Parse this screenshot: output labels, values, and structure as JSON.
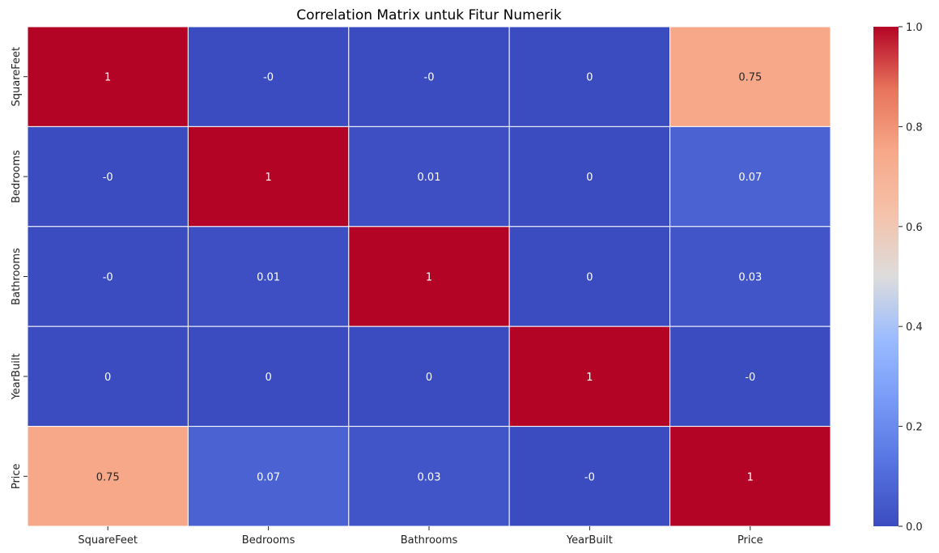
{
  "chart_data": {
    "type": "heatmap",
    "title": "Correlation Matrix untuk Fitur Numerik",
    "xlabel": "",
    "ylabel": "",
    "categories_x": [
      "SquareFeet",
      "Bedrooms",
      "Bathrooms",
      "YearBuilt",
      "Price"
    ],
    "categories_y": [
      "SquareFeet",
      "Bedrooms",
      "Bathrooms",
      "YearBuilt",
      "Price"
    ],
    "values": [
      [
        1,
        -0.0,
        -0.0,
        0.0,
        0.75
      ],
      [
        -0.0,
        1,
        0.01,
        0.0,
        0.07
      ],
      [
        -0.0,
        0.01,
        1,
        0.0,
        0.03
      ],
      [
        0.0,
        0.0,
        0.0,
        1,
        -0.0
      ],
      [
        0.75,
        0.07,
        0.03,
        -0.0,
        1
      ]
    ],
    "labels": [
      [
        "1",
        "-0",
        "-0",
        "0",
        "0.75"
      ],
      [
        "-0",
        "1",
        "0.01",
        "0",
        "0.07"
      ],
      [
        "-0",
        "0.01",
        "1",
        "0",
        "0.03"
      ],
      [
        "0",
        "0",
        "0",
        "1",
        "-0"
      ],
      [
        "0.75",
        "0.07",
        "0.03",
        "-0",
        "1"
      ]
    ],
    "colormap": "coolwarm",
    "colorbar": {
      "range": [
        0.0,
        1.0
      ],
      "ticks": [
        "0.0",
        "0.2",
        "0.4",
        "0.6",
        "0.8",
        "1.0"
      ],
      "placement": "right"
    },
    "grid": false
  }
}
